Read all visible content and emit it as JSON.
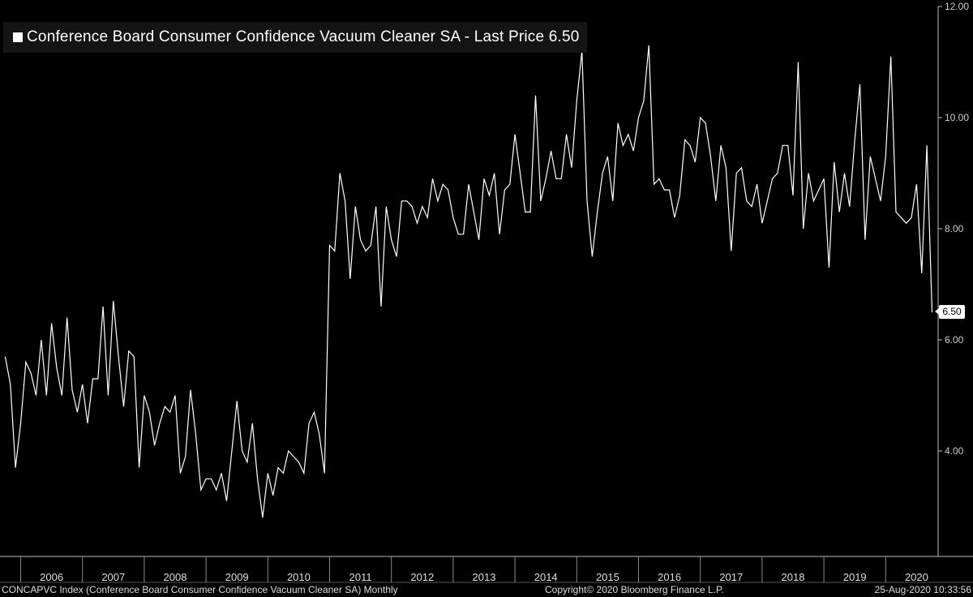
{
  "legend": {
    "label": "Conference Board Consumer Confidence Vacuum Cleaner SA - Last Price 6.50"
  },
  "footer": {
    "left": "CONCAPVC Index (Conference Board Consumer Confidence Vacuum Cleaner SA)  Monthly",
    "center": "Copyright© 2020 Bloomberg Finance L.P.",
    "right": "25-Aug-2020  10:33:56"
  },
  "last_price_label": "6.50",
  "colors": {
    "background": "#000000",
    "line": "#ffffff",
    "grid": "#6a6a6a"
  },
  "chart_data": {
    "type": "line",
    "title": "Conference Board Consumer Confidence Vacuum Cleaner SA - Last Price 6.50",
    "xlabel": "",
    "ylabel": "",
    "ylim": [
      2.0,
      12.0
    ],
    "yticks": [
      4.0,
      6.0,
      8.0,
      10.0,
      12.0
    ],
    "ytick_labels": [
      "4.00",
      "6.00",
      "8.00",
      "10.00",
      "12.00"
    ],
    "xtick_labels": [
      "2006",
      "2007",
      "2008",
      "2009",
      "2010",
      "2011",
      "2012",
      "2013",
      "2014",
      "2015",
      "2016",
      "2017",
      "2018",
      "2019",
      "2020"
    ],
    "x_start": "2005-10",
    "frequency": "monthly",
    "last_value": 6.5,
    "series": [
      {
        "name": "CONCAPVC Index",
        "values": [
          5.7,
          5.2,
          3.7,
          4.5,
          5.6,
          5.4,
          5.0,
          6.0,
          5.0,
          6.3,
          5.5,
          5.0,
          6.4,
          5.1,
          4.7,
          5.2,
          4.5,
          5.3,
          5.3,
          6.6,
          5.0,
          6.7,
          5.7,
          4.8,
          5.8,
          5.7,
          3.7,
          5.0,
          4.7,
          4.1,
          4.5,
          4.8,
          4.7,
          5.0,
          3.6,
          3.9,
          5.1,
          4.3,
          3.3,
          3.5,
          3.5,
          3.3,
          3.6,
          3.1,
          4.0,
          4.9,
          4.0,
          3.8,
          4.5,
          3.5,
          2.8,
          3.6,
          3.2,
          3.7,
          3.6,
          4.0,
          3.9,
          3.8,
          3.6,
          4.5,
          4.7,
          4.3,
          3.6,
          7.7,
          7.6,
          9.0,
          8.5,
          7.1,
          8.4,
          7.8,
          7.6,
          7.7,
          8.4,
          6.6,
          8.4,
          7.8,
          7.5,
          8.5,
          8.5,
          8.4,
          8.1,
          8.4,
          8.2,
          8.9,
          8.5,
          8.8,
          8.7,
          8.2,
          7.9,
          7.9,
          8.8,
          8.3,
          7.8,
          8.9,
          8.6,
          9.0,
          7.9,
          8.7,
          8.8,
          9.7,
          9.0,
          8.3,
          8.3,
          10.4,
          8.5,
          8.9,
          9.4,
          8.9,
          8.9,
          9.7,
          9.1,
          10.3,
          11.2,
          8.5,
          7.5,
          8.3,
          9.0,
          9.3,
          8.5,
          9.9,
          9.5,
          9.7,
          9.4,
          10.0,
          10.3,
          11.3,
          8.8,
          8.9,
          8.7,
          8.7,
          8.2,
          8.6,
          9.6,
          9.5,
          9.2,
          10.0,
          9.9,
          9.3,
          8.5,
          9.5,
          9.1,
          7.6,
          9.0,
          9.1,
          8.5,
          8.4,
          8.8,
          8.1,
          8.5,
          8.9,
          9.0,
          9.5,
          9.5,
          8.6,
          11.0,
          8.0,
          9.0,
          8.5,
          8.7,
          8.9,
          7.3,
          9.2,
          8.3,
          9.0,
          8.4,
          9.6,
          10.6,
          7.8,
          9.3,
          8.9,
          8.5,
          9.3,
          11.1,
          8.3,
          8.2,
          8.1,
          8.2,
          8.8,
          7.2,
          9.5,
          6.5
        ]
      }
    ]
  }
}
